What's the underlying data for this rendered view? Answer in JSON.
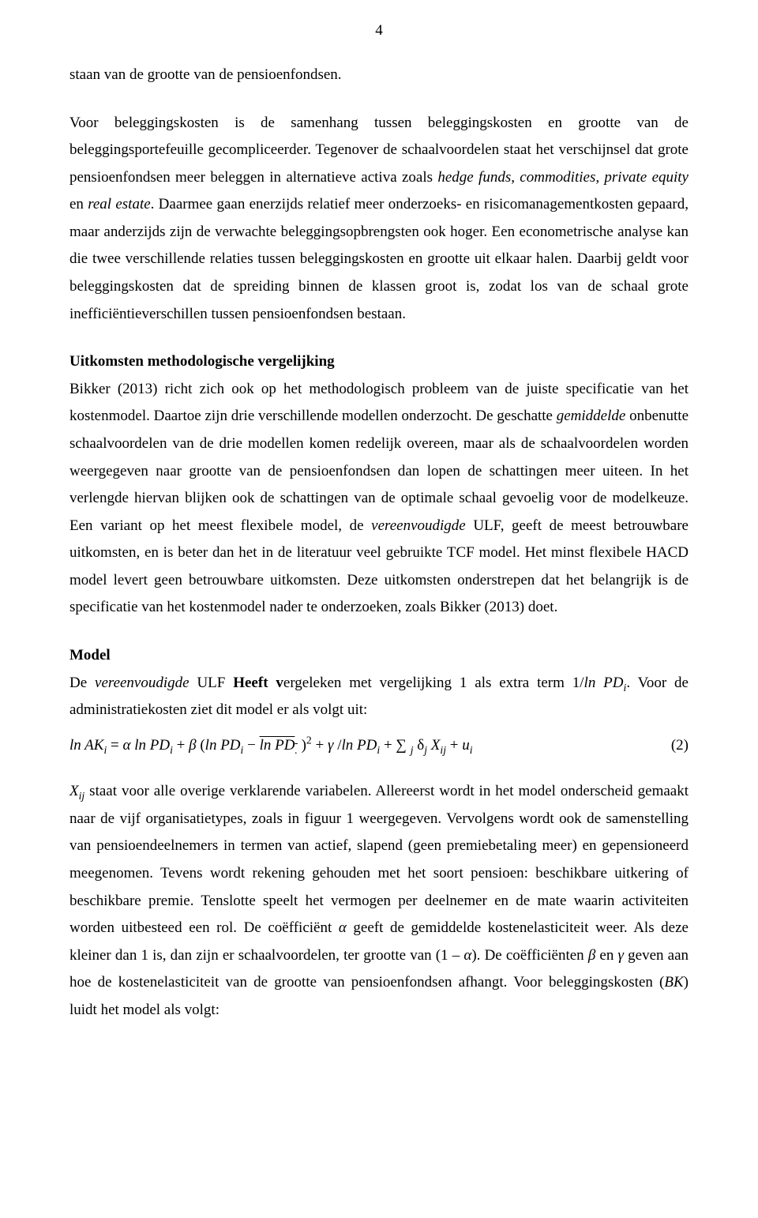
{
  "page_number": "4",
  "para1_html": "staan van de grootte van de pensioenfondsen.",
  "para2_html": "Voor beleggingskosten is de samenhang tussen beleggingskosten en grootte van de beleggingsportefeuille gecompliceerder. Tegenover de schaalvoordelen staat het verschijnsel dat grote pensioenfondsen meer beleggen in alternatieve activa zoals <span class=\"italic\">hedge funds, commodities, private equity</span> en <span class=\"italic\">real estate</span>. Daarmee gaan enerzijds relatief meer onderzoeks- en risicomanagementkosten gepaard, maar anderzijds zijn de verwachte beleggingsopbrengsten ook hoger. Een econometrische analyse kan die twee verschillende relaties tussen beleggingskosten en grootte uit elkaar halen. Daarbij geldt voor beleggingskosten dat de spreiding binnen de klassen groot is, zodat los van de schaal grote inefficiëntieverschillen tussen pensioenfondsen bestaan.",
  "heading1": "Uitkomsten methodologische vergelijking",
  "para3_html": "Bikker (2013) richt zich ook op het methodologisch probleem van de juiste specificatie van het kostenmodel. Daartoe zijn drie verschillende modellen onderzocht. De geschatte <span class=\"italic\">gemiddelde</span> onbenutte schaalvoordelen van de drie modellen komen redelijk overeen, maar als de schaalvoordelen worden weergegeven naar grootte van de pensioenfondsen dan lopen de schattingen meer uiteen. In het verlengde hiervan blijken ook de schattingen van de optimale schaal gevoelig voor de modelkeuze. Een variant op het meest flexibele model, de <span class=\"italic\">vereenvoudigde</span> ULF, geeft de meest betrouwbare uitkomsten, en is beter dan het in de literatuur veel gebruikte TCF model. Het minst flexibele HACD model levert geen betrouwbare uitkomsten. Deze uitkomsten onderstrepen dat het belangrijk is de specificatie van het kostenmodel nader te onderzoeken, zoals Bikker (2013) doet.",
  "heading2": "Model",
  "para4_html": "De <span class=\"italic\">vereenvoudigde</span> ULF <span class=\"bold\">Heeft v</span>ergeleken met vergelijking 1 als extra term 1/<span class=\"italic\">ln PD<sub>i</sub></span>. Voor de administratiekosten ziet dit model er als volgt uit:",
  "equation_html": "<span class=\"italic\">ln AK<sub>i</sub></span> = <span class=\"italic\">α ln PD<sub>i</sub></span> + <span class=\"italic\">β</span> (<span class=\"italic\">ln PD<sub>i</sub></span> − <span class=\"overline\"><span class=\"italic\">ln PD<sub>.</sub></span></span> )<sup>2</sup> + <span class=\"italic\">γ</span> /<span class=\"italic\">ln PD<sub>i</sub></span> + ∑ <sub><span class=\"italic\">j</span></sub> δ<sub><span class=\"italic\">j</span></sub> <span class=\"italic\">X<sub>ij</sub></span> + <span class=\"italic\">u<sub>i</sub></span>",
  "equation_number": "(2)",
  "para5_html": "<span class=\"italic\">X<sub>ij</sub></span> staat voor alle overige verklarende variabelen. Allereerst wordt in het model onderscheid gemaakt naar de vijf organisatietypes, zoals in figuur 1 weergegeven. Vervolgens wordt ook de samenstelling van pensioendeelnemers in termen van actief, slapend (geen premiebetaling meer) en gepensioneerd meegenomen. Tevens wordt rekening gehouden met het soort pensioen: beschikbare uitkering of beschikbare premie. Tenslotte speelt het vermogen per deelnemer en de mate waarin activiteiten worden uitbesteed een rol. De coëfficiënt <span class=\"italic\">α</span> geeft de gemiddelde kostenelasticiteit weer. Als deze kleiner dan 1 is, dan zijn er schaalvoordelen, ter grootte van (1 – <span class=\"italic\">α</span>). De coëfficiënten <span class=\"italic\">β</span> en <span class=\"italic\">γ</span> geven aan hoe de kostenelasticiteit van de grootte van pensioenfondsen afhangt. Voor beleggingskosten (<span class=\"italic\">BK</span>) luidt het model als volgt:"
}
